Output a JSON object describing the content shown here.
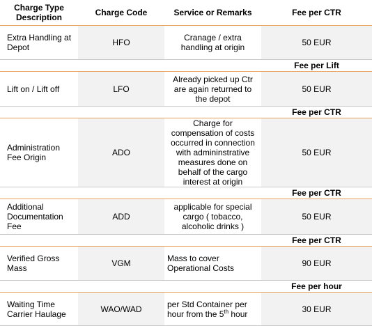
{
  "headers": {
    "description": "Charge Type Description",
    "code": "Charge Code",
    "remarks": "Service or Remarks",
    "fee": "Fee per CTR"
  },
  "rows": [
    {
      "description": "Extra Handling at Depot",
      "code": "HFO",
      "remarks": "Cranage / extra handling at origin",
      "fee": "50 EUR",
      "subheader": "Fee per Lift"
    },
    {
      "description": "Lift on / Lift off",
      "code": "LFO",
      "remarks": "Already picked up Ctr are again returned to the depot",
      "fee": "50 EUR",
      "subheader": "Fee per CTR"
    },
    {
      "description": "Administration Fee Origin",
      "code": "ADO",
      "remarks": "Charge for compensation of costs occurred in connection with admininstrative measures done on behalf of the cargo interest at origin",
      "fee": "50 EUR",
      "subheader": "Fee per CTR"
    },
    {
      "description": "Additional Documentation Fee",
      "code": "ADD",
      "remarks": "applicable for special cargo ( tobacco, alcoholic drinks )",
      "fee": "50 EUR",
      "subheader": "Fee per CTR"
    },
    {
      "description": "Verified Gross Mass",
      "code": "VGM",
      "remarks": "Mass to cover Operational Costs",
      "fee": "90 EUR",
      "subheader": "Fee per hour"
    },
    {
      "description": "Waiting Time Carrier Haulage",
      "code": "WAO/WAD",
      "remarks_prefix": "per Std Container  per hour from the 5",
      "remarks_sup": "th",
      "remarks_suffix": " hour",
      "fee": "30 EUR"
    }
  ]
}
